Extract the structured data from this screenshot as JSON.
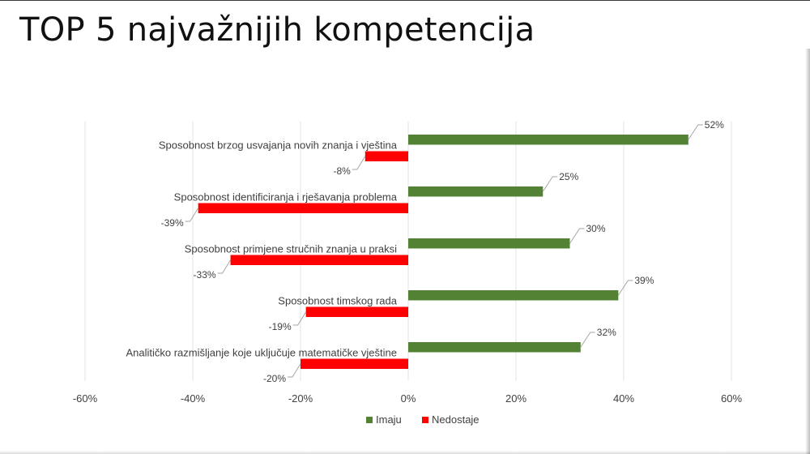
{
  "page": {
    "title": "TOP 5 najvažnijih kompetencija"
  },
  "chart_data": {
    "type": "bar",
    "orientation": "horizontal",
    "categories": [
      "Sposobnost brzog usvajanja novih znanja i vještina",
      "Sposobnost identificiranja i rješavanja problema",
      "Sposobnost primjene stručnih znanja u praksi",
      "Sposobnost timskog rada",
      "Analitičko razmišljanje koje uključuje matematičke vještine"
    ],
    "series": [
      {
        "name": "Imaju",
        "color": "#548235",
        "values": [
          52,
          25,
          30,
          39,
          32
        ],
        "labels": [
          "52%",
          "25%",
          "30%",
          "39%",
          "32%"
        ]
      },
      {
        "name": "Nedostaje",
        "color": "#ff0000",
        "values": [
          -8,
          -39,
          -33,
          -19,
          -20
        ],
        "labels": [
          "-8%",
          "-39%",
          "-33%",
          "-19%",
          "-20%"
        ]
      }
    ],
    "xlim": [
      -60,
      60
    ],
    "xticks": [
      -60,
      -40,
      -20,
      0,
      20,
      40,
      60
    ],
    "xtick_labels": [
      "-60%",
      "-40%",
      "-20%",
      "0%",
      "20%",
      "40%",
      "60%"
    ],
    "grid": true,
    "legend_position": "bottom",
    "xlabel": "",
    "ylabel": ""
  }
}
